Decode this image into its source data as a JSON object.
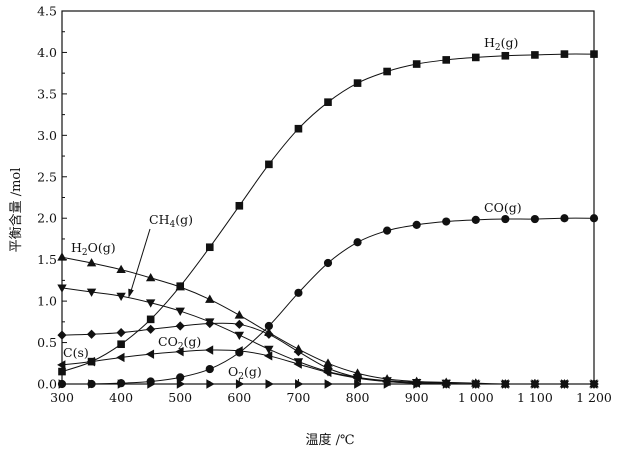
{
  "chart_data": {
    "type": "line",
    "xlabel": "温度 /℃",
    "ylabel": "平衡含量 /mol",
    "xlim": [
      300,
      1200
    ],
    "ylim": [
      0,
      4.5
    ],
    "x_ticks": [
      300,
      400,
      500,
      600,
      700,
      800,
      900,
      1000,
      1100,
      1200
    ],
    "x_tick_labels": [
      "300",
      "400",
      "500",
      "600",
      "700",
      "800",
      "900",
      "1 000",
      "1 100",
      "1 200"
    ],
    "y_ticks": [
      0,
      0.5,
      1.0,
      1.5,
      2.0,
      2.5,
      3.0,
      3.5,
      4.0,
      4.5
    ],
    "y_tick_labels": [
      "0.0",
      "0.5",
      "1.0",
      "1.5",
      "2.0",
      "2.5",
      "3.0",
      "3.5",
      "4.0",
      "4.5"
    ],
    "x": [
      300,
      350,
      400,
      450,
      500,
      550,
      600,
      650,
      700,
      750,
      800,
      850,
      900,
      950,
      1000,
      1050,
      1100,
      1150,
      1200
    ],
    "series": [
      {
        "name": "H2(g)",
        "label": "H",
        "sub": "2",
        "suffix": "(g)",
        "marker": "square",
        "values": [
          0.15,
          0.27,
          0.48,
          0.78,
          1.18,
          1.65,
          2.15,
          2.65,
          3.08,
          3.4,
          3.63,
          3.77,
          3.86,
          3.91,
          3.94,
          3.96,
          3.97,
          3.98,
          3.98
        ]
      },
      {
        "name": "CO(g)",
        "label": "CO",
        "sub": "",
        "suffix": "(g)",
        "marker": "circle",
        "values": [
          0.0,
          0.0,
          0.01,
          0.03,
          0.08,
          0.18,
          0.38,
          0.7,
          1.1,
          1.46,
          1.71,
          1.85,
          1.92,
          1.96,
          1.98,
          1.99,
          1.99,
          2.0,
          2.0
        ]
      },
      {
        "name": "H2O(g)",
        "label": "H",
        "sub": "2",
        "suffix": "O(g)",
        "marker": "triangle-up",
        "values": [
          1.53,
          1.46,
          1.38,
          1.28,
          1.17,
          1.02,
          0.83,
          0.62,
          0.42,
          0.25,
          0.13,
          0.06,
          0.03,
          0.02,
          0.01,
          0.0,
          0.0,
          0.0,
          0.0
        ]
      },
      {
        "name": "CH4(g)",
        "label": "CH",
        "sub": "4",
        "suffix": "(g)",
        "marker": "triangle-down",
        "values": [
          1.16,
          1.11,
          1.06,
          0.98,
          0.88,
          0.75,
          0.59,
          0.42,
          0.27,
          0.15,
          0.08,
          0.04,
          0.02,
          0.01,
          0.0,
          0.0,
          0.0,
          0.0,
          0.0
        ]
      },
      {
        "name": "C(s)",
        "label": "C(s)",
        "sub": "",
        "suffix": "",
        "marker": "diamond",
        "values": [
          0.59,
          0.6,
          0.62,
          0.66,
          0.7,
          0.73,
          0.72,
          0.6,
          0.39,
          0.19,
          0.08,
          0.03,
          0.01,
          0.0,
          0.0,
          0.0,
          0.0,
          0.0,
          0.0
        ]
      },
      {
        "name": "CO2(g)",
        "label": "CO",
        "sub": "2",
        "suffix": "(g)",
        "marker": "triangle-left",
        "values": [
          0.23,
          0.27,
          0.32,
          0.36,
          0.39,
          0.41,
          0.4,
          0.34,
          0.24,
          0.14,
          0.07,
          0.03,
          0.01,
          0.0,
          0.0,
          0.0,
          0.0,
          0.0,
          0.0
        ]
      },
      {
        "name": "O2(g)",
        "label": "O",
        "sub": "2",
        "suffix": "(g)",
        "marker": "triangle-right",
        "values": [
          0.0,
          0.0,
          0.0,
          0.0,
          0.0,
          0.0,
          0.0,
          0.0,
          0.0,
          0.0,
          0.0,
          0.0,
          0.0,
          0.0,
          0.0,
          0.0,
          0.0,
          0.0,
          0.0
        ]
      }
    ],
    "annotations": [
      "H2(g)",
      "CO(g)",
      "H2O(g)",
      "CH4(g)",
      "C(s)",
      "CO2(g)",
      "O2(g)"
    ]
  }
}
